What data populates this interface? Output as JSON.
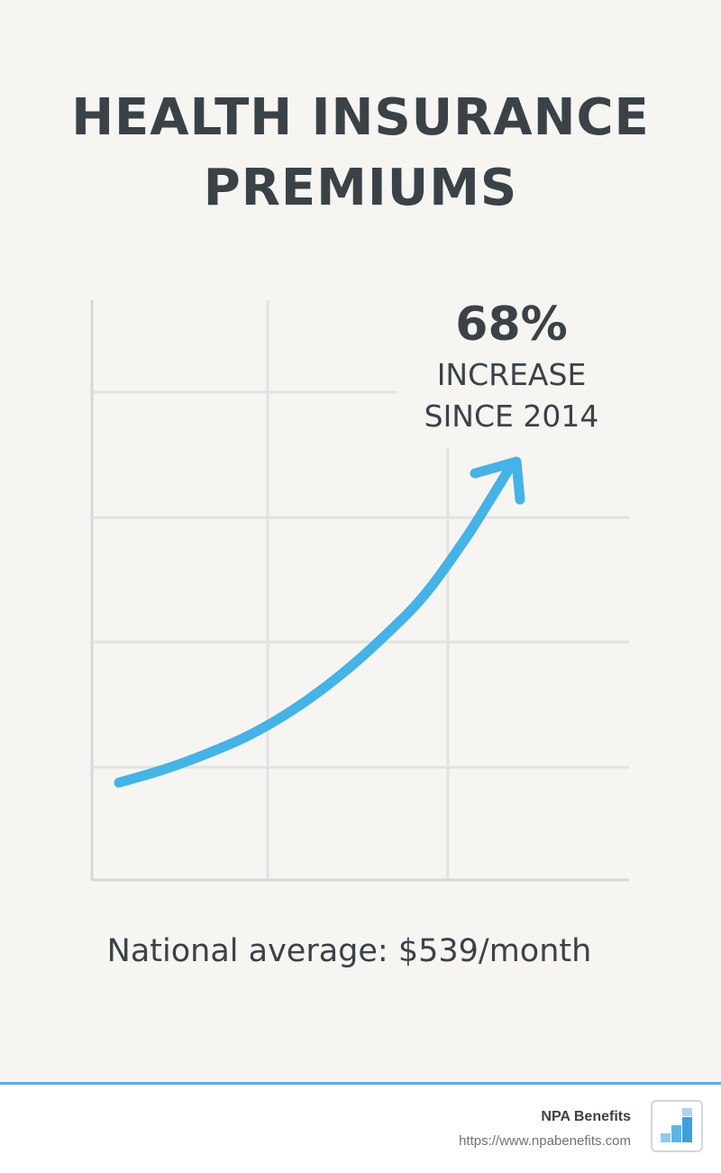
{
  "title_lines": [
    "HEALTH INSURANCE",
    "PREMIUMS"
  ],
  "chart_data": {
    "type": "line",
    "title": "HEALTH INSURANCE PREMIUMS",
    "annotation": {
      "value": "68%",
      "label_lines": [
        "INCREASE",
        "SINCE 2014"
      ]
    },
    "series": [
      {
        "values": [
          0,
          0.04,
          0.09,
          0.15,
          0.23,
          0.33,
          0.45,
          0.59,
          0.78,
          1.0
        ]
      }
    ],
    "grid": true,
    "colors": {
      "line": "#43b3e8",
      "grid": "#e2e2e2",
      "axis": "#d7d7d7"
    }
  },
  "national_average": "National average: $539/month",
  "footer": {
    "brand_name": "NPA Benefits",
    "url": "https://www.npabenefits.com",
    "accent_color": "#5aaee3",
    "logo_icon": "bar-chart-logo-icon"
  }
}
